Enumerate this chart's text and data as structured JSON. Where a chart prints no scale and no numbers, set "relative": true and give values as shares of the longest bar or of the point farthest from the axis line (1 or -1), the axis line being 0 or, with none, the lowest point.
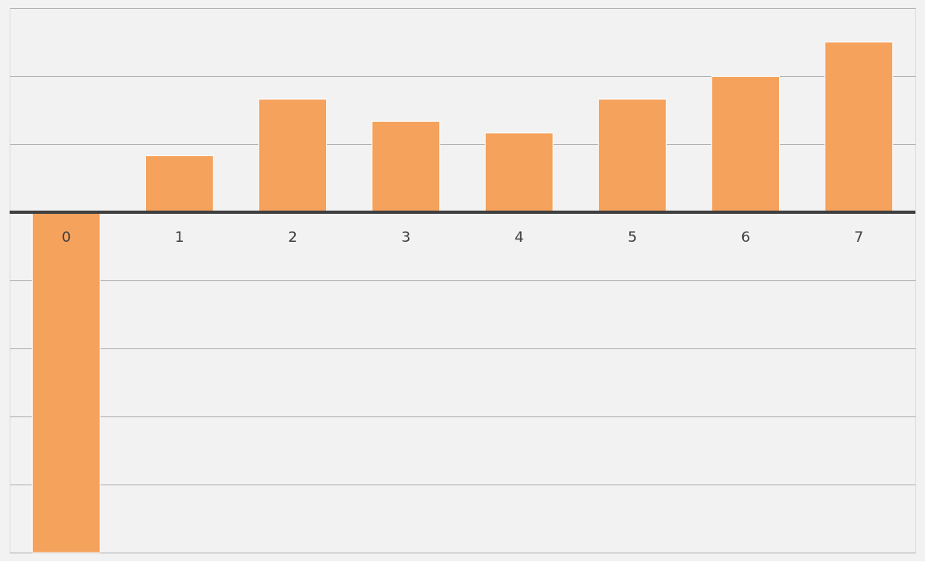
{
  "chart_data": {
    "type": "bar",
    "relative": true,
    "grid": true,
    "categories": [
      "0",
      "1",
      "2",
      "3",
      "4",
      "5",
      "6",
      "7"
    ],
    "values": [
      -1,
      0.166,
      0.332,
      0.267,
      0.233,
      0.332,
      0.399,
      0.5
    ],
    "color": "#f5a25d"
  }
}
